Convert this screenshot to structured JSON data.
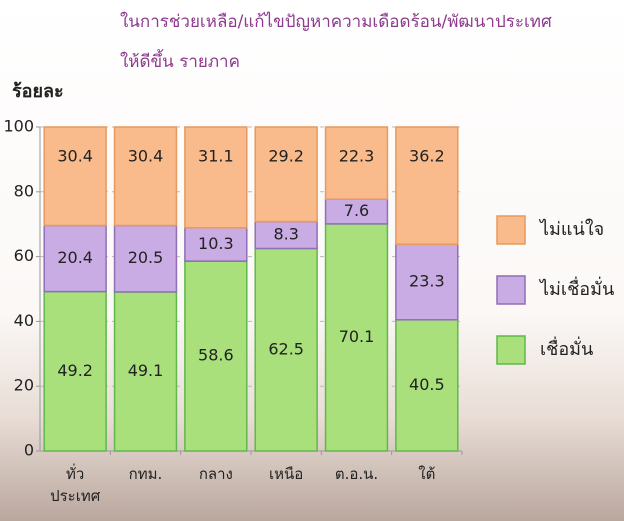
{
  "chart_data": {
    "type": "stacked_bar",
    "title": [
      "ในการช่วยเหลือ/แก้ไขปัญหาความเดือดร้อน/พัฒนาประเทศ",
      "ให้ดีขึ้น รายภาค"
    ],
    "y_label": "ร้อยละ",
    "categories": [
      "ทั่ว\nประเทศ",
      "กทม.",
      "กลาง",
      "เหนือ",
      "ต.อ.น.",
      "ใต้"
    ],
    "series": [
      {
        "name": "เชื่อมั่น",
        "color": "#a9e07c",
        "values": [
          49.2,
          49.1,
          58.6,
          62.5,
          70.1,
          40.5
        ]
      },
      {
        "name": "ไม่เชื่อมั่น",
        "color": "#c9ace3",
        "values": [
          20.4,
          20.5,
          10.3,
          8.3,
          7.6,
          23.3
        ]
      },
      {
        "name": "ไม่แน่ใจ",
        "color": "#f9bb8c",
        "values": [
          30.4,
          30.4,
          31.1,
          29.2,
          22.3,
          36.2
        ]
      }
    ],
    "ylim": [
      0,
      100
    ],
    "yticks": [
      0,
      20,
      40,
      60,
      80,
      100
    ],
    "grid": true,
    "legend": "right"
  }
}
